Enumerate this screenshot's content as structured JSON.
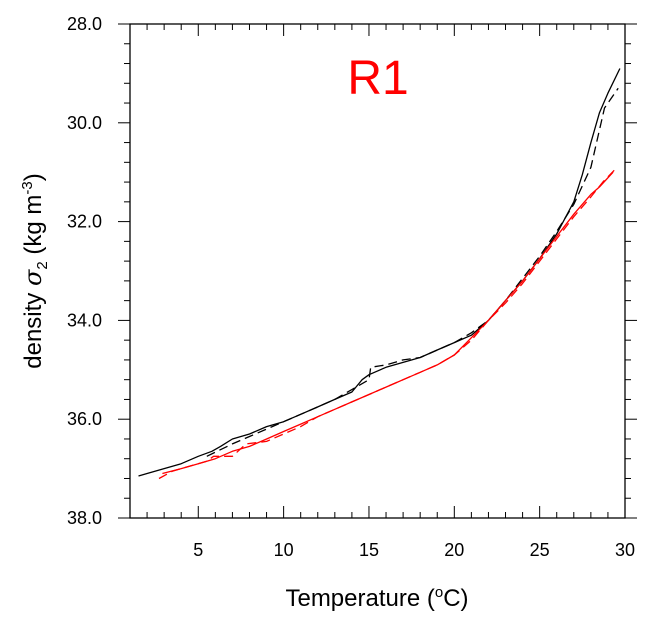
{
  "chart_data": {
    "type": "line",
    "title": "",
    "xlabel": "Temperature (oC)",
    "xlabel_parts": {
      "base": "Temperature (",
      "sup": "o",
      "tail": "C)"
    },
    "ylabel": "density σ2 (kg m-3)",
    "ylabel_parts": {
      "word": "density ",
      "symbol": "σ",
      "symbol_sub": "2",
      "units": " (kg m",
      "units_sup": "-3",
      "units_tail": ")"
    },
    "xlim": [
      1,
      30
    ],
    "ylim": [
      28.0,
      38.0
    ],
    "y_inverted": true,
    "x_ticks": [
      5,
      10,
      15,
      20,
      25,
      30
    ],
    "x_tick_labels": [
      "5",
      "10",
      "15",
      "20",
      "25",
      "30"
    ],
    "y_ticks": [
      28.0,
      30.0,
      32.0,
      34.0,
      36.0,
      38.0
    ],
    "y_tick_labels": [
      "28.0",
      "30.0",
      "32.0",
      "34.0",
      "36.0",
      "38.0"
    ],
    "grid": false,
    "legend": "none",
    "annotation": {
      "text": "R1",
      "color": "#ff0000"
    },
    "series": [
      {
        "color": "#000000",
        "dash": "solid",
        "points": [
          [
            1.5,
            37.15
          ],
          [
            2.0,
            37.1
          ],
          [
            3.0,
            37.0
          ],
          [
            4.0,
            36.9
          ],
          [
            5.0,
            36.75
          ],
          [
            5.8,
            36.65
          ],
          [
            6.3,
            36.55
          ],
          [
            7.0,
            36.4
          ],
          [
            8.0,
            36.3
          ],
          [
            9.0,
            36.15
          ],
          [
            10.0,
            36.05
          ],
          [
            11.0,
            35.9
          ],
          [
            12.0,
            35.75
          ],
          [
            13.0,
            35.6
          ],
          [
            14.0,
            35.45
          ],
          [
            14.6,
            35.2
          ],
          [
            15.0,
            35.1
          ],
          [
            16.0,
            34.95
          ],
          [
            17.0,
            34.85
          ],
          [
            18.0,
            34.75
          ],
          [
            19.0,
            34.6
          ],
          [
            20.0,
            34.45
          ],
          [
            21.0,
            34.3
          ],
          [
            22.0,
            34.0
          ],
          [
            23.0,
            33.6
          ],
          [
            24.0,
            33.2
          ],
          [
            25.0,
            32.75
          ],
          [
            26.0,
            32.25
          ],
          [
            27.0,
            31.6
          ],
          [
            27.5,
            31.05
          ],
          [
            28.0,
            30.4
          ],
          [
            28.5,
            29.8
          ],
          [
            29.0,
            29.4
          ],
          [
            29.7,
            28.9
          ]
        ]
      },
      {
        "color": "#000000",
        "dash": "dashed",
        "points": [
          [
            5.5,
            36.75
          ],
          [
            7.0,
            36.5
          ],
          [
            8.0,
            36.35
          ],
          [
            9.0,
            36.2
          ],
          [
            10.0,
            36.05
          ],
          [
            11.0,
            35.9
          ],
          [
            12.0,
            35.75
          ],
          [
            13.0,
            35.6
          ],
          [
            14.0,
            35.4
          ],
          [
            15.0,
            35.2
          ],
          [
            15.1,
            34.95
          ],
          [
            16.0,
            34.9
          ],
          [
            17.0,
            34.8
          ],
          [
            18.0,
            34.75
          ],
          [
            19.0,
            34.6
          ],
          [
            20.0,
            34.45
          ],
          [
            21.0,
            34.25
          ],
          [
            22.0,
            34.0
          ],
          [
            23.0,
            33.6
          ],
          [
            24.0,
            33.15
          ],
          [
            25.0,
            32.7
          ],
          [
            26.0,
            32.2
          ],
          [
            27.0,
            31.65
          ],
          [
            28.0,
            30.9
          ],
          [
            28.4,
            30.3
          ],
          [
            28.8,
            29.7
          ],
          [
            29.6,
            29.3
          ]
        ]
      },
      {
        "color": "#ff0000",
        "dash": "solid",
        "points": [
          [
            2.9,
            37.1
          ],
          [
            4.0,
            37.0
          ],
          [
            5.0,
            36.9
          ],
          [
            6.0,
            36.8
          ],
          [
            7.0,
            36.65
          ],
          [
            8.0,
            36.55
          ],
          [
            9.0,
            36.4
          ],
          [
            10.0,
            36.25
          ],
          [
            11.0,
            36.1
          ],
          [
            12.0,
            35.95
          ],
          [
            13.0,
            35.8
          ],
          [
            14.0,
            35.65
          ],
          [
            15.0,
            35.5
          ],
          [
            16.0,
            35.35
          ],
          [
            17.0,
            35.2
          ],
          [
            18.0,
            35.05
          ],
          [
            19.0,
            34.9
          ],
          [
            20.0,
            34.7
          ],
          [
            21.0,
            34.35
          ],
          [
            22.0,
            34.0
          ],
          [
            23.0,
            33.6
          ],
          [
            24.0,
            33.2
          ],
          [
            25.0,
            32.75
          ],
          [
            26.0,
            32.3
          ],
          [
            27.0,
            31.85
          ],
          [
            28.0,
            31.45
          ],
          [
            28.5,
            31.3
          ],
          [
            29.3,
            31.0
          ]
        ]
      },
      {
        "color": "#ff0000",
        "dash": "dashed",
        "points": [
          [
            2.7,
            37.2
          ],
          [
            3.5,
            37.05
          ],
          [
            4.5,
            36.95
          ],
          [
            5.5,
            36.85
          ],
          [
            5.9,
            36.75
          ],
          [
            7.0,
            36.75
          ],
          [
            7.8,
            36.5
          ],
          [
            9.0,
            36.45
          ],
          [
            10.0,
            36.3
          ],
          [
            11.0,
            36.15
          ],
          [
            12.0,
            35.95
          ],
          [
            13.0,
            35.8
          ],
          [
            14.0,
            35.65
          ],
          [
            15.0,
            35.5
          ],
          [
            16.0,
            35.35
          ],
          [
            17.0,
            35.2
          ],
          [
            18.0,
            35.05
          ],
          [
            19.0,
            34.9
          ],
          [
            20.0,
            34.7
          ],
          [
            21.0,
            34.4
          ],
          [
            22.0,
            34.0
          ],
          [
            23.0,
            33.65
          ],
          [
            24.0,
            33.25
          ],
          [
            25.0,
            32.8
          ],
          [
            26.0,
            32.35
          ],
          [
            27.0,
            31.9
          ],
          [
            28.0,
            31.5
          ],
          [
            28.7,
            31.2
          ],
          [
            29.4,
            30.95
          ]
        ]
      }
    ]
  }
}
